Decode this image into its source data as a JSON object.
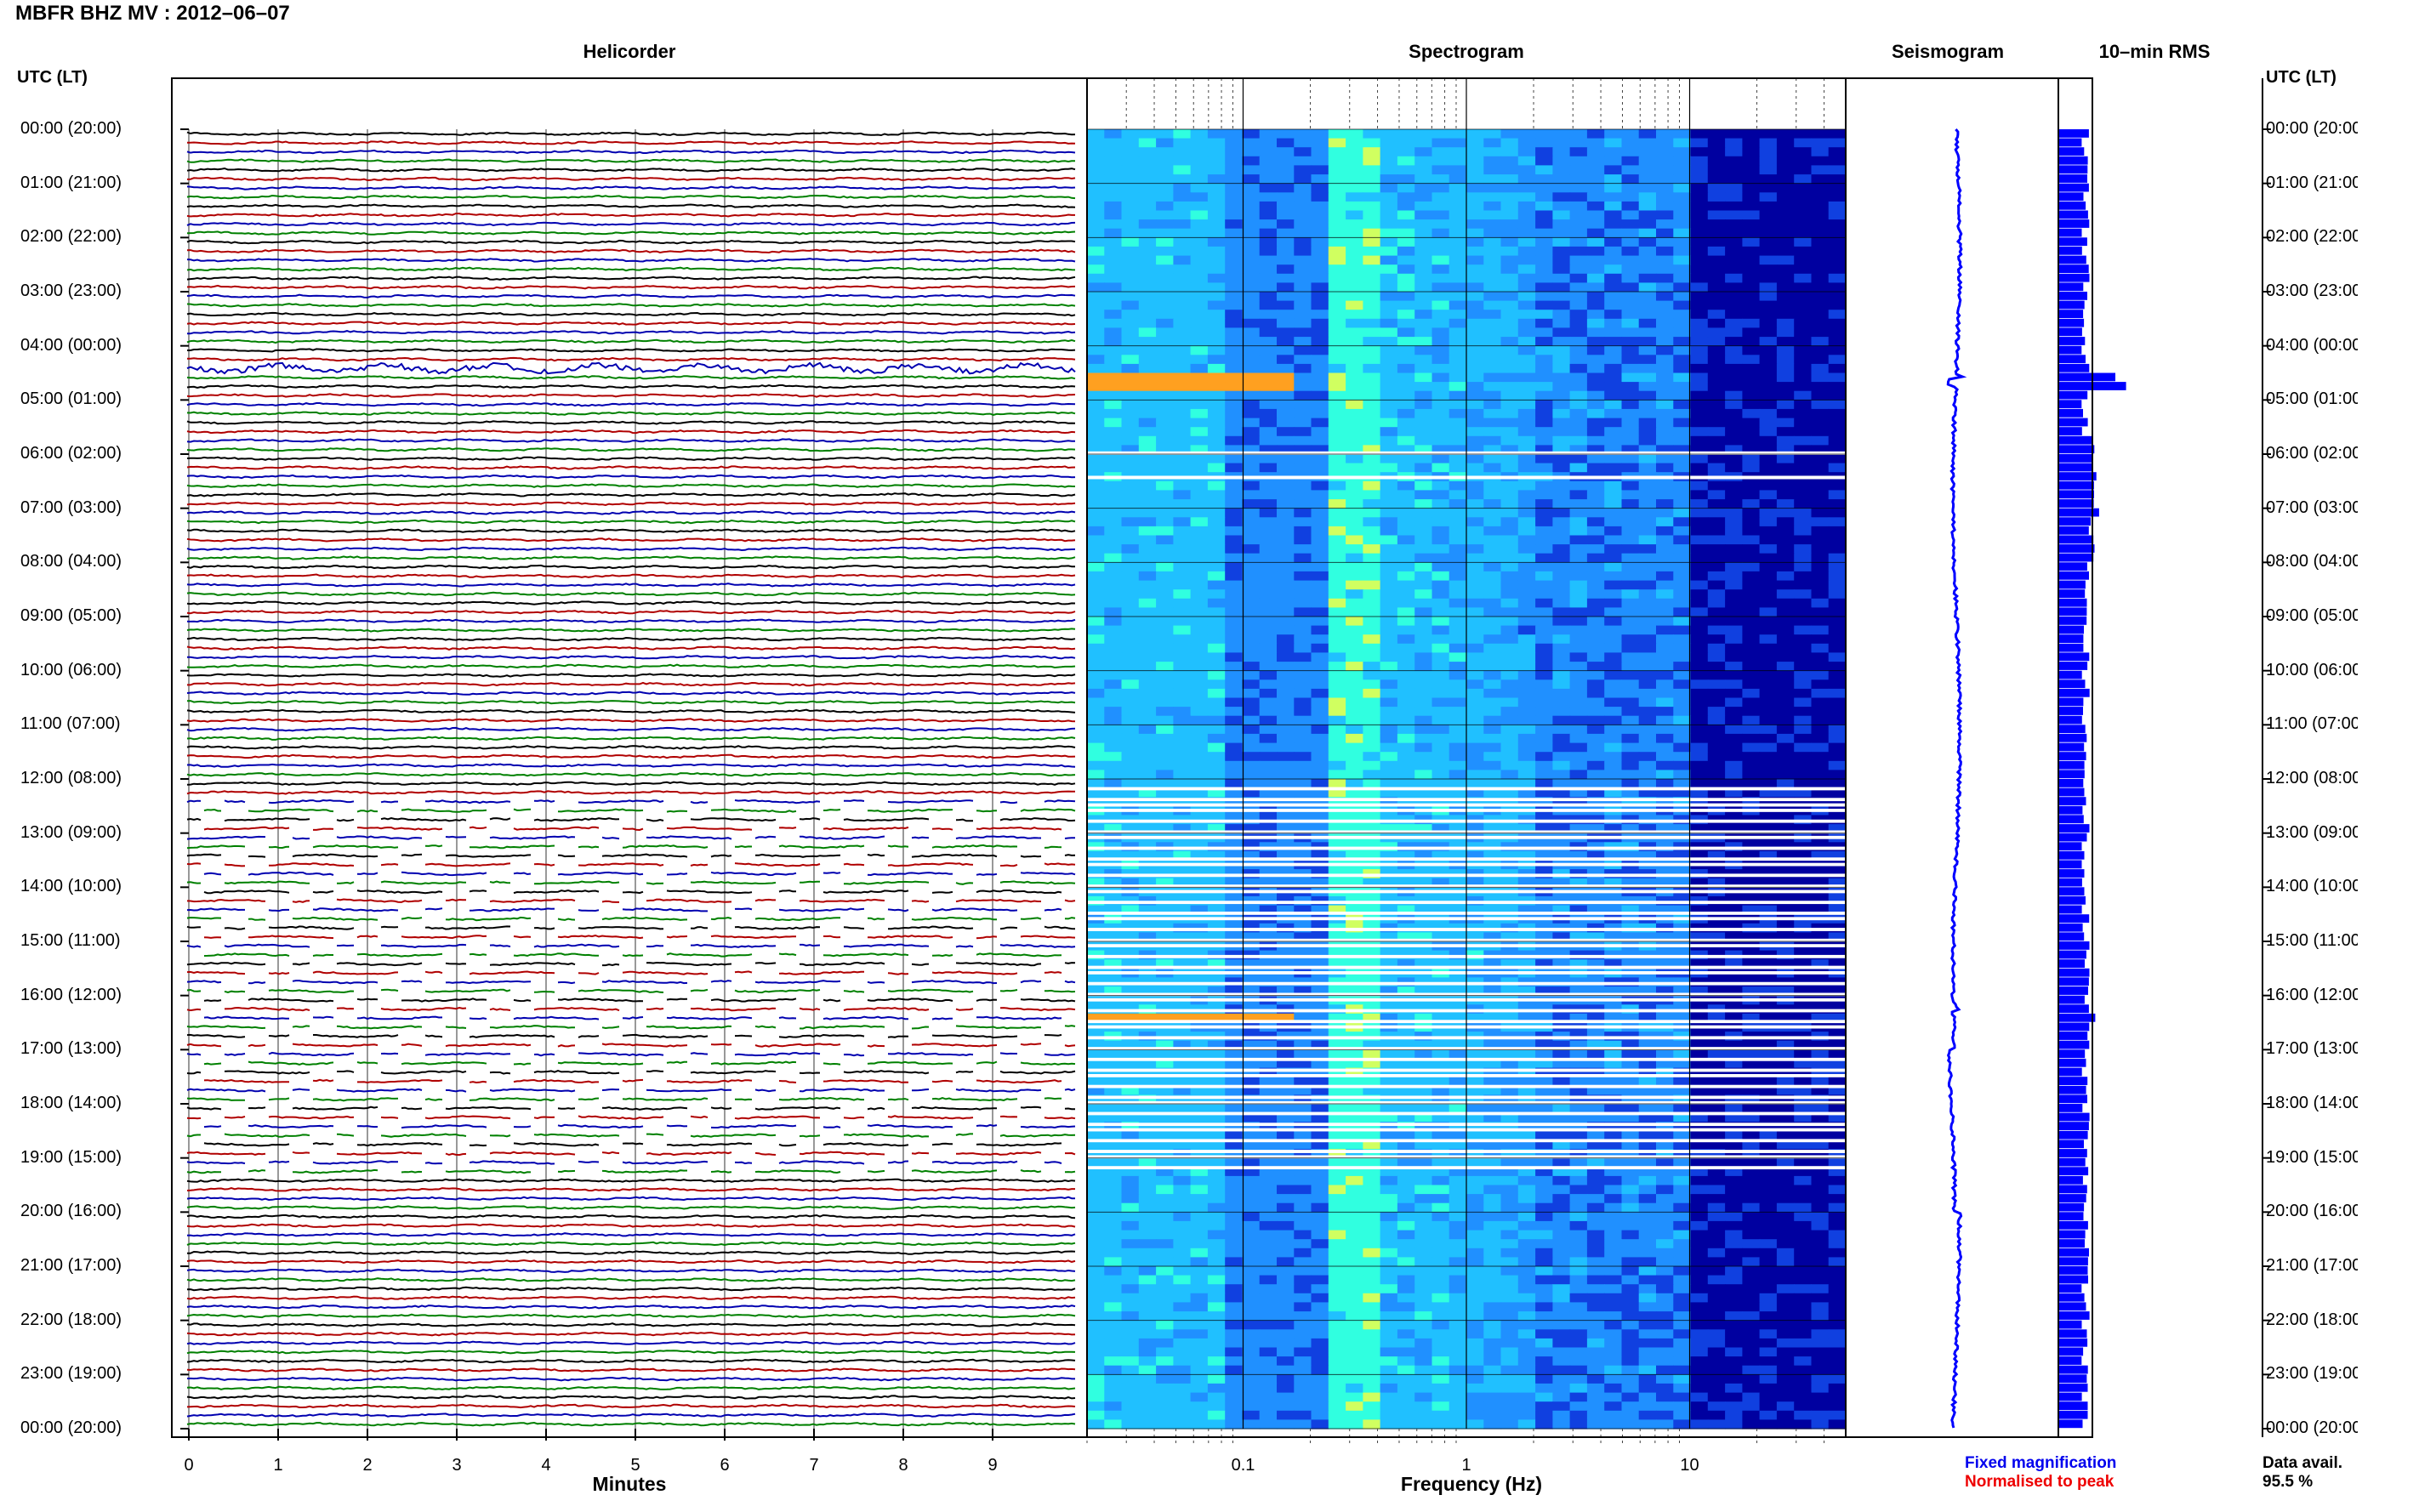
{
  "header": {
    "title": "MBFR BHZ MV : 2012–06–07"
  },
  "panels": {
    "helicorder": "Helicorder",
    "spectrogram": "Spectrogram",
    "seismogram": "Seismogram",
    "rms": "10–min RMS"
  },
  "axes": {
    "left_corner": "UTC (LT)",
    "right_corner": "UTC (LT)",
    "minutes_label": "Minutes",
    "frequency_label": "Frequency (Hz)",
    "minute_ticks": [
      "0",
      "1",
      "2",
      "3",
      "4",
      "5",
      "6",
      "7",
      "8",
      "9"
    ],
    "frequency_ticks": [
      "0.1",
      "1",
      "10"
    ],
    "hours": [
      "00:00 (20:00)",
      "01:00 (21:00)",
      "02:00 (22:00)",
      "03:00 (23:00)",
      "04:00 (00:00)",
      "05:00 (01:00)",
      "06:00 (02:00)",
      "07:00 (03:00)",
      "08:00 (04:00)",
      "09:00 (05:00)",
      "10:00 (06:00)",
      "11:00 (07:00)",
      "12:00 (08:00)",
      "13:00 (09:00)",
      "14:00 (10:00)",
      "15:00 (11:00)",
      "16:00 (12:00)",
      "17:00 (13:00)",
      "18:00 (14:00)",
      "19:00 (15:00)",
      "20:00 (16:00)",
      "21:00 (17:00)",
      "22:00 (18:00)",
      "23:00 (19:00)",
      "00:00 (20:00)"
    ]
  },
  "legend": {
    "fixed": "Fixed magnification",
    "normalised": "Normalised to peak",
    "data_avail_label": "Data avail.",
    "data_avail_value": "95.5 %"
  },
  "colors": {
    "trace_cycle": [
      "#000000",
      "#b00000",
      "#0000b0",
      "#008000"
    ],
    "spectro_low": "#0000a0",
    "spectro_mid": "#2090ff",
    "spectro_high": "#30ffe0",
    "rms_bar": "#0000ff",
    "seismo": "#0000ff"
  },
  "chart_data": [
    {
      "type": "line",
      "name": "helicorder",
      "xlim": [
        0,
        10
      ],
      "x_unit": "minutes",
      "lines_per_hour": 6,
      "hours": 24,
      "gap_hours": [
        [
          12.2,
          19.2
        ]
      ],
      "data_gap_full_minutes": [
        [
          5.95,
          6.0
        ],
        [
          6.4,
          6.45
        ]
      ]
    },
    {
      "type": "heatmap",
      "name": "spectrogram",
      "xlim": [
        0.02,
        50
      ],
      "x_scale": "log",
      "ylim": [
        0,
        24
      ],
      "full_gap_hours": [
        [
          5.95,
          6.0
        ],
        [
          6.4,
          6.45
        ]
      ],
      "banded_gap_hours": [
        [
          12.05,
          19.2
        ]
      ],
      "peak_events": [
        {
          "hour": 4.6,
          "freq_hz": 0.06
        },
        {
          "hour": 16.3,
          "freq_hz": 0.07
        }
      ]
    },
    {
      "type": "line",
      "name": "seismogram",
      "ylim": [
        0,
        24
      ],
      "spikes_hours": [
        4.65,
        16.2
      ]
    },
    {
      "type": "bar",
      "name": "10-min RMS",
      "ylim": [
        0,
        24
      ],
      "baseline_level": 0.4,
      "peaks": [
        {
          "hour": 4.6,
          "level": 1.0
        },
        {
          "hour": 16.3,
          "level": 0.65
        },
        {
          "hour": 7.0,
          "level": 0.55
        }
      ]
    }
  ]
}
